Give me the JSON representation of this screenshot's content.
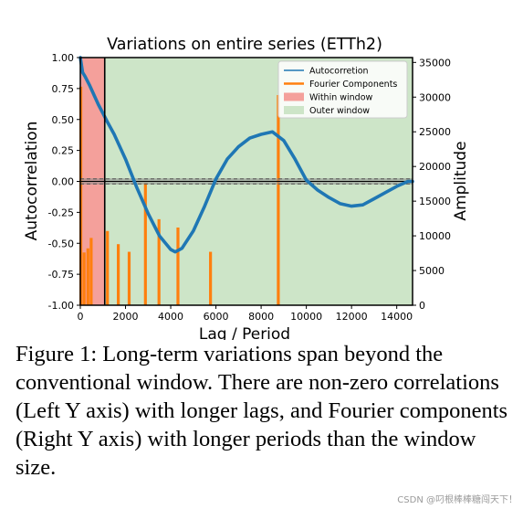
{
  "chart_data": {
    "type": "line",
    "title": "Variations on entire series (ETTh2)",
    "xlabel": "Lag / Period",
    "ylabel_left": "Autocorrelation",
    "ylabel_right": "Amplitude",
    "xlim": [
      0,
      14700
    ],
    "ylim_left": [
      -1.0,
      1.0
    ],
    "ylim_right": [
      0,
      35700
    ],
    "x_ticks": [
      0,
      2000,
      4000,
      6000,
      8000,
      10000,
      12000,
      14000
    ],
    "y_ticks_left": [
      "1.00",
      "0.75",
      "0.50",
      "0.25",
      "0.00",
      "-0.25",
      "-0.50",
      "-0.75",
      "-1.00"
    ],
    "y_ticks_right": [
      0,
      5000,
      10000,
      15000,
      20000,
      25000,
      30000,
      35000
    ],
    "window_end": 1080,
    "grid": false,
    "legend_position": "top-right",
    "legend": [
      "Autocorretion",
      "Fourier Components",
      "Within window",
      "Outer window"
    ],
    "colors": {
      "autocorrelation": "#1f77b4",
      "fourier": "#ff7f0e",
      "within_window": "#f4a09b",
      "outer_window": "#cde5c8"
    },
    "autocorrelation": {
      "name": "Autocorretion",
      "x": [
        0,
        100,
        200,
        400,
        600,
        800,
        1000,
        1200,
        1500,
        2000,
        2500,
        3000,
        3500,
        4000,
        4200,
        4500,
        5000,
        5500,
        6000,
        6500,
        7000,
        7500,
        8000,
        8500,
        9000,
        9500,
        10000,
        10500,
        11000,
        11500,
        12000,
        12500,
        13000,
        13500,
        14000,
        14500,
        14700
      ],
      "y": [
        1.0,
        0.88,
        0.85,
        0.78,
        0.7,
        0.62,
        0.55,
        0.48,
        0.38,
        0.18,
        -0.05,
        -0.26,
        -0.44,
        -0.55,
        -0.57,
        -0.54,
        -0.4,
        -0.2,
        0.02,
        0.18,
        0.28,
        0.35,
        0.38,
        0.4,
        0.33,
        0.18,
        0.01,
        -0.07,
        -0.13,
        -0.18,
        -0.2,
        -0.19,
        -0.14,
        -0.09,
        -0.04,
        0.0,
        0.0
      ]
    },
    "fourier": {
      "name": "Fourier Components",
      "x": [
        24,
        168,
        336,
        480,
        1200,
        1680,
        2160,
        2880,
        3480,
        4320,
        5760,
        8760
      ],
      "y": [
        31500,
        7600,
        8200,
        9700,
        10700,
        8800,
        7700,
        17600,
        12400,
        11200,
        7700,
        30300
      ]
    },
    "baseline_band": [
      -0.025,
      0.025
    ],
    "baseline_dashed": [
      0.02,
      -0.02
    ]
  },
  "caption": {
    "text": "Figure 1: Long-term variations span beyond the conventional window. There are non-zero correlations (Left Y axis) with longer lags, and Fourier components (Right Y axis) with longer periods than the window size."
  },
  "watermark": "CSDN @叼根棒棒糖闯天下！"
}
